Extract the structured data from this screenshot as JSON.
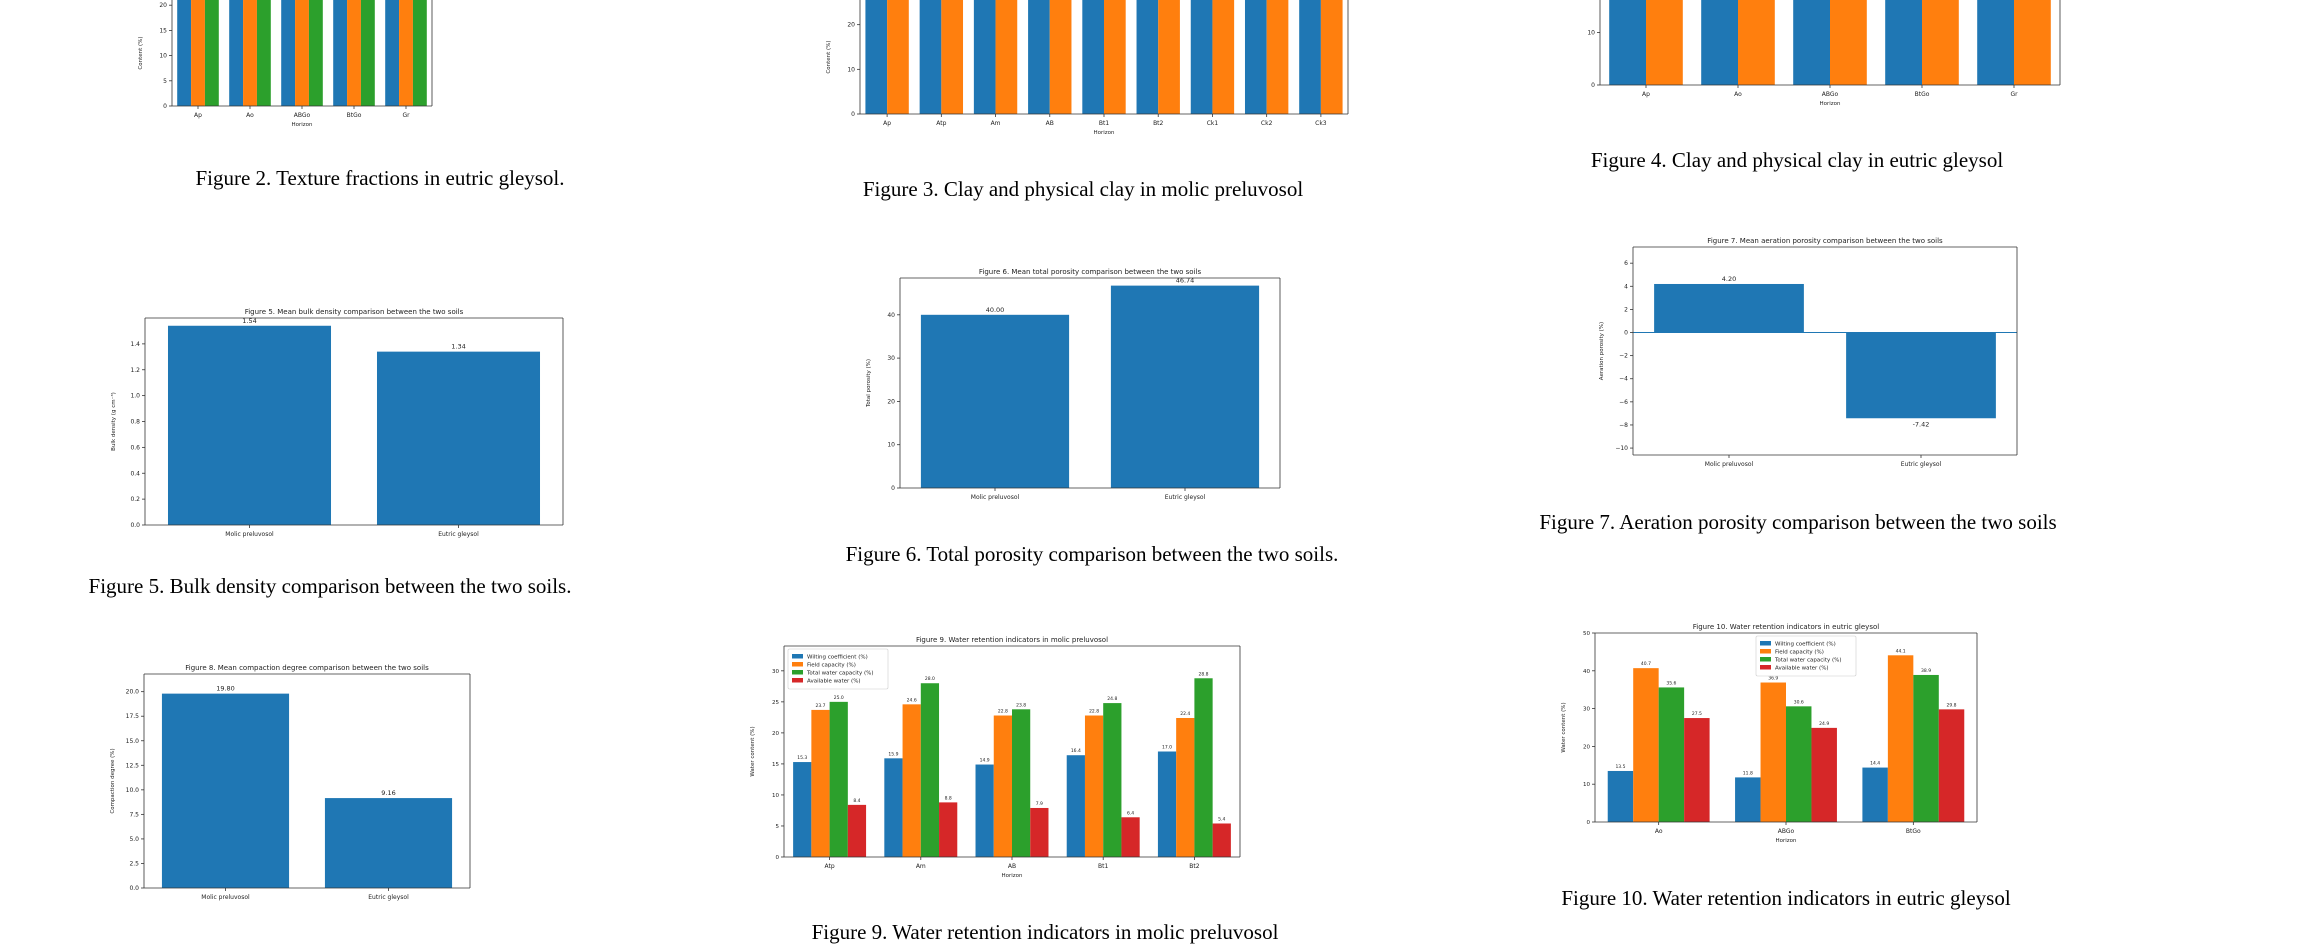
{
  "captions": {
    "fig2": "Figure 2. Texture fractions in eutric gleysol.",
    "fig3": "Figure 3. Clay and physical clay in molic preluvosol",
    "fig4": "Figure 4. Clay and physical clay in eutric gleysol",
    "fig5": "Figure 5. Bulk density comparison between the two soils.",
    "fig6": "Figure 6. Total porosity comparison between the two soils.",
    "fig7": "Figure 7. Aeration porosity comparison between the two soils",
    "fig9": "Figure 9. Water retention indicators in molic preluvosol",
    "fig10": "Figure 10. Water retention indicators in eutric gleysol"
  },
  "colors": {
    "blue": "#1f77b4",
    "orange": "#ff7f0e",
    "green": "#2ca02c",
    "red": "#d62728"
  },
  "chart_data": [
    {
      "id": "fig2",
      "type": "bar",
      "title": "",
      "xlabel": "Horizon",
      "ylabel": "Content (%)",
      "categories": [
        "Ap",
        "Ao",
        "ABGo",
        "BtGo",
        "Gr"
      ],
      "ylim": [
        0,
        25
      ],
      "yticks": [
        0,
        5,
        10,
        15,
        20,
        25
      ],
      "clipped_top": true,
      "series": [
        {
          "name": "",
          "color": "blue",
          "values": [
            26,
            26,
            26,
            26,
            26
          ]
        },
        {
          "name": "",
          "color": "orange",
          "values": [
            26,
            26,
            26,
            26,
            26
          ]
        },
        {
          "name": "",
          "color": "green",
          "values": [
            26,
            26,
            26,
            26,
            26
          ]
        }
      ]
    },
    {
      "id": "fig3",
      "type": "bar",
      "title": "",
      "xlabel": "Horizon",
      "ylabel": "Content (%)",
      "categories": [
        "Ap",
        "Atp",
        "Am",
        "AB",
        "Bt1",
        "Bt2",
        "Ck1",
        "Ck2",
        "Ck3"
      ],
      "ylim": [
        0,
        30
      ],
      "yticks": [
        0,
        10,
        20,
        30
      ],
      "clipped_top": true,
      "series": [
        {
          "name": "",
          "color": "blue",
          "values": [
            34,
            34,
            34,
            34,
            34,
            34,
            34,
            34,
            34
          ]
        },
        {
          "name": "",
          "color": "orange",
          "values": [
            34,
            34,
            34,
            34,
            34,
            34,
            34,
            34,
            34
          ]
        }
      ]
    },
    {
      "id": "fig4",
      "type": "bar",
      "title": "",
      "xlabel": "Horizon",
      "ylabel": "",
      "categories": [
        "Ap",
        "Ao",
        "ABGo",
        "BtGo",
        "Gr"
      ],
      "ylim": [
        0,
        20
      ],
      "yticks": [
        0,
        10,
        20
      ],
      "clipped_top": true,
      "series": [
        {
          "name": "",
          "color": "blue",
          "values": [
            25,
            25,
            25,
            25,
            25
          ]
        },
        {
          "name": "",
          "color": "orange",
          "values": [
            25,
            25,
            25,
            25,
            25
          ]
        }
      ]
    },
    {
      "id": "fig5",
      "type": "bar",
      "title": "Figure 5. Mean bulk density comparison between the two soils",
      "xlabel": "",
      "ylabel": "Bulk density (g cm⁻³)",
      "categories": [
        "Molic preluvosol",
        "Eutric gleysol"
      ],
      "ylim": [
        0,
        1.6
      ],
      "yticks": [
        0.0,
        0.2,
        0.4,
        0.6,
        0.8,
        1.0,
        1.2,
        1.4
      ],
      "tick_decimals": 1,
      "series": [
        {
          "name": "",
          "color": "blue",
          "values": [
            1.54,
            1.34
          ],
          "labels": [
            "1.54",
            "1.34"
          ]
        }
      ]
    },
    {
      "id": "fig6",
      "type": "bar",
      "title": "Figure 6. Mean total porosity comparison between the two soils",
      "xlabel": "",
      "ylabel": "Total porosity (%)",
      "categories": [
        "Molic preluvosol",
        "Eutric gleysol"
      ],
      "ylim": [
        0,
        48.5
      ],
      "yticks": [
        0,
        10,
        20,
        30,
        40
      ],
      "tick_decimals": 0,
      "series": [
        {
          "name": "",
          "color": "blue",
          "values": [
            40.0,
            46.74
          ],
          "labels": [
            "40.00",
            "46.74"
          ]
        }
      ]
    },
    {
      "id": "fig7",
      "type": "bar",
      "title": "Figure 7. Mean aeration porosity comparison between the two soils",
      "xlabel": "",
      "ylabel": "Aeration porosity (%)",
      "categories": [
        "Molic preluvosol",
        "Eutric gleysol"
      ],
      "ylim": [
        -10.6,
        7.4
      ],
      "yticks": [
        -10,
        -8,
        -6,
        -4,
        -2,
        0,
        2,
        4,
        6
      ],
      "tick_decimals": 0,
      "zero_line": true,
      "series": [
        {
          "name": "",
          "color": "blue",
          "values": [
            4.2,
            -7.42
          ],
          "labels": [
            "4.20",
            "-7.42"
          ]
        }
      ]
    },
    {
      "id": "fig8",
      "type": "bar",
      "title": "Figure 8. Mean compaction degree comparison between the two soils",
      "xlabel": "",
      "ylabel": "Compaction degree (%)",
      "categories": [
        "Molic preluvosol",
        "Eutric gleysol"
      ],
      "ylim": [
        0,
        21.8
      ],
      "yticks": [
        0.0,
        2.5,
        5.0,
        7.5,
        10.0,
        12.5,
        15.0,
        17.5,
        20.0
      ],
      "tick_decimals": 1,
      "series": [
        {
          "name": "",
          "color": "blue",
          "values": [
            19.8,
            9.16
          ],
          "labels": [
            "19.80",
            "9.16"
          ]
        }
      ]
    },
    {
      "id": "fig9",
      "type": "bar",
      "title": "Figure 9. Water retention indicators in molic preluvosol",
      "xlabel": "Horizon",
      "ylabel": "Water content (%)",
      "categories": [
        "Atp",
        "Am",
        "AB",
        "Bt1",
        "Bt2"
      ],
      "ylim": [
        0,
        34
      ],
      "yticks": [
        0,
        5,
        10,
        15,
        20,
        25,
        30
      ],
      "tick_decimals": 0,
      "legend": "upper left",
      "series": [
        {
          "name": "Wilting coefficient (%)",
          "color": "blue",
          "values": [
            15.3,
            15.9,
            14.9,
            16.4,
            17.0
          ],
          "labels": [
            "15.3",
            "15.9",
            "14.9",
            "16.4",
            "17.0"
          ]
        },
        {
          "name": "Field capacity (%)",
          "color": "orange",
          "values": [
            23.7,
            24.6,
            22.8,
            22.8,
            22.4
          ],
          "labels": [
            "23.7",
            "24.6",
            "22.8",
            "22.8",
            "22.4"
          ]
        },
        {
          "name": "Total water capacity (%)",
          "color": "green",
          "values": [
            25.0,
            28.0,
            23.8,
            24.8,
            28.8
          ],
          "labels": [
            "25.0",
            "28.0",
            "23.8",
            "24.8",
            "28.8"
          ]
        },
        {
          "name": "Available water (%)",
          "color": "red",
          "values": [
            8.4,
            8.8,
            7.9,
            6.4,
            5.4
          ],
          "labels": [
            "8.4",
            "8.8",
            "7.9",
            "6.4",
            "5.4"
          ]
        }
      ]
    },
    {
      "id": "fig10",
      "type": "bar",
      "title": "Figure 10. Water retention indicators in eutric gleysol",
      "xlabel": "Horizon",
      "ylabel": "Water content (%)",
      "categories": [
        "Ao",
        "ABGo",
        "BtGo"
      ],
      "ylim": [
        0,
        50
      ],
      "yticks": [
        0,
        10,
        20,
        30,
        40,
        50
      ],
      "tick_decimals": 0,
      "legend": "upper center",
      "series": [
        {
          "name": "Wilting coefficient (%)",
          "color": "blue",
          "values": [
            13.5,
            11.8,
            14.4
          ],
          "labels": [
            "13.5",
            "11.8",
            "14.4"
          ]
        },
        {
          "name": "Field capacity (%)",
          "color": "orange",
          "values": [
            40.7,
            36.9,
            44.1
          ],
          "labels": [
            "40.7",
            "36.9",
            "44.1"
          ]
        },
        {
          "name": "Total water capacity (%)",
          "color": "green",
          "values": [
            35.6,
            30.6,
            38.9
          ],
          "labels": [
            "35.6",
            "30.6",
            "38.9"
          ]
        },
        {
          "name": "Available water (%)",
          "color": "red",
          "values": [
            27.5,
            24.9,
            29.8
          ],
          "labels": [
            "27.5",
            "24.9",
            "29.8"
          ]
        }
      ]
    }
  ]
}
